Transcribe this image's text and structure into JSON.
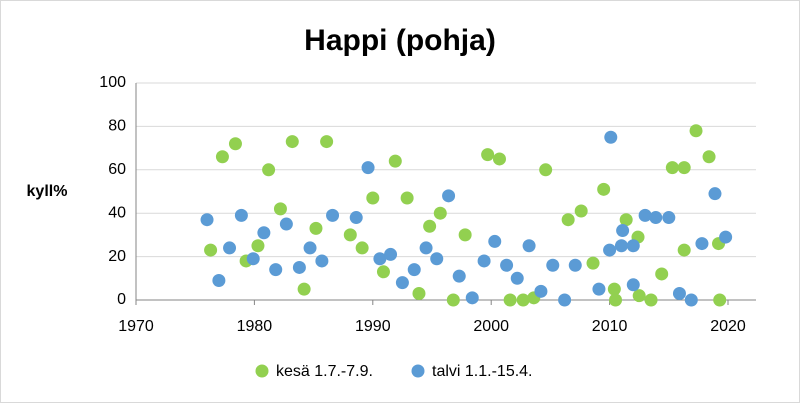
{
  "chart_data": {
    "type": "scatter",
    "title": "Happi (pohja)",
    "y_label": "kyll%",
    "xlim": [
      1970,
      2020
    ],
    "xticks": [
      1970,
      1980,
      1990,
      2000,
      2010,
      2020
    ],
    "ylim": [
      0,
      100
    ],
    "yticks": [
      0,
      20,
      40,
      60,
      80,
      100
    ],
    "grid": true,
    "legend": "bottom",
    "series": [
      {
        "name": "kesä 1.7.-7.9.",
        "color": "#92d050",
        "x": [
          1976.3,
          1977.3,
          1978.4,
          1979.3,
          1980.3,
          1981.2,
          1982.2,
          1983.2,
          1984.2,
          1985.2,
          1986.1,
          1988.1,
          1989.1,
          1990.0,
          1990.9,
          1991.9,
          1992.9,
          1993.9,
          1994.8,
          1995.7,
          1996.8,
          1997.8,
          1999.7,
          2000.7,
          2001.6,
          2002.7,
          2003.6,
          2004.6,
          2006.5,
          2007.6,
          2008.6,
          2009.5,
          2010.4,
          2010.5,
          2011.4,
          2012.4,
          2012.5,
          2013.5,
          2014.4,
          2015.3,
          2016.3,
          2016.3,
          2017.3,
          2018.4,
          2019.2,
          2019.3
        ],
        "values": [
          23,
          66,
          72,
          18,
          25,
          60,
          42,
          73,
          5,
          33,
          73,
          30,
          24,
          47,
          13,
          64,
          47,
          3,
          34,
          40,
          0,
          30,
          67,
          65,
          0,
          0,
          1,
          60,
          37,
          41,
          17,
          51,
          5,
          0,
          37,
          29,
          2,
          0,
          12,
          61,
          23,
          61,
          78,
          66,
          26,
          0
        ]
      },
      {
        "name": "talvi 1.1.-15.4.",
        "color": "#5b9bd5",
        "x": [
          1976.0,
          1977.0,
          1977.9,
          1978.9,
          1979.9,
          1980.8,
          1981.8,
          1982.7,
          1983.8,
          1984.7,
          1985.7,
          1986.6,
          1988.6,
          1989.6,
          1990.6,
          1991.5,
          1992.5,
          1993.5,
          1994.5,
          1995.4,
          1996.4,
          1997.3,
          1998.4,
          1999.4,
          2000.3,
          2001.3,
          2002.2,
          2003.2,
          2004.2,
          2005.2,
          2006.2,
          2007.1,
          2009.1,
          2010.0,
          2010.1,
          2011.0,
          2011.1,
          2012.0,
          2012.0,
          2013.0,
          2013.9,
          2015.0,
          2015.9,
          2016.9,
          2017.8,
          2018.9,
          2019.8
        ],
        "values": [
          37,
          9,
          24,
          39,
          19,
          31,
          14,
          35,
          15,
          24,
          18,
          39,
          38,
          61,
          19,
          21,
          8,
          14,
          24,
          19,
          48,
          11,
          1,
          18,
          27,
          16,
          10,
          25,
          4,
          16,
          0,
          16,
          5,
          23,
          75,
          25,
          32,
          25,
          7,
          39,
          38,
          38,
          3,
          0,
          26,
          49,
          29
        ]
      }
    ]
  }
}
